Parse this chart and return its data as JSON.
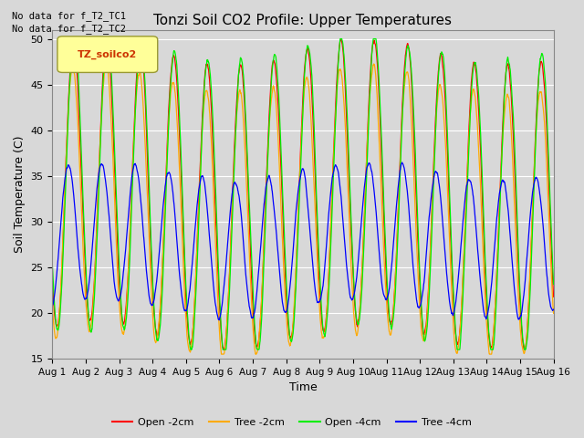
{
  "title": "Tonzi Soil CO2 Profile: Upper Temperatures",
  "xlabel": "Time",
  "ylabel": "Soil Temperature (C)",
  "ylim": [
    15,
    51
  ],
  "yticks": [
    15,
    20,
    25,
    30,
    35,
    40,
    45,
    50
  ],
  "annotation_lines": [
    "No data for f_T2_TC1",
    "No data for f_T2_TC2"
  ],
  "legend_label": "TZ_soilco2",
  "series_labels": [
    "Open -2cm",
    "Tree -2cm",
    "Open -4cm",
    "Tree -4cm"
  ],
  "series_colors": [
    "#ff0000",
    "#ffaa00",
    "#00ee00",
    "#0000ff"
  ],
  "n_days": 15,
  "points_per_day": 144,
  "xtick_labels": [
    "Aug 1",
    "Aug 2",
    "Aug 3",
    "Aug 4",
    "Aug 5",
    "Aug 6",
    "Aug 7",
    "Aug 8",
    "Aug 9",
    "Aug 10",
    "Aug 11",
    "Aug 12",
    "Aug 13",
    "Aug 14",
    "Aug 15",
    "Aug 16"
  ]
}
